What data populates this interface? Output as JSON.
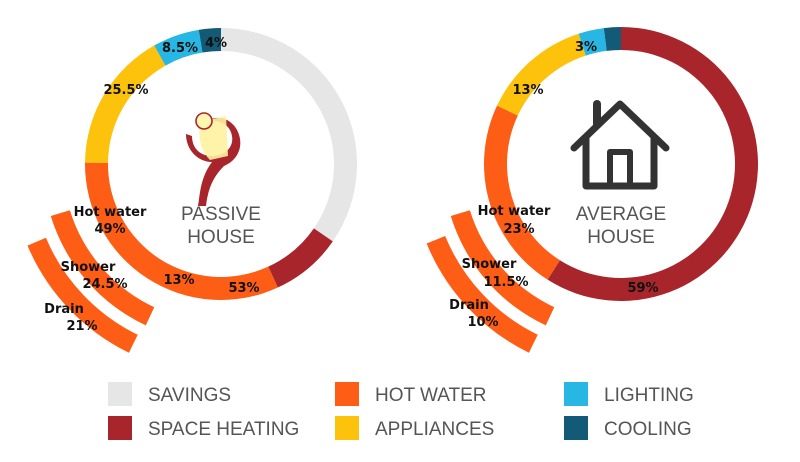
{
  "colors": {
    "savings": "#e6e6e6",
    "space_heating": "#a8262b",
    "hot_water": "#fd5d15",
    "appliances": "#fdc20b",
    "lighting": "#28b6e4",
    "cooling": "#125a75",
    "icon_dark": "#333333"
  },
  "chart_data": [
    {
      "type": "pie",
      "center_lines": [
        "PASSIVE",
        "HOUSE"
      ],
      "slices": [
        {
          "category": "SAVINGS",
          "value": 53,
          "label": "53%"
        },
        {
          "category": "SPACE HEATING",
          "value": 13,
          "label": "13%"
        },
        {
          "category": "HOT WATER",
          "value": 49,
          "label_name": "Hot water",
          "label": "49%"
        },
        {
          "category": "APPLIANCES",
          "value": 25.5,
          "label": "25.5%"
        },
        {
          "category": "LIGHTING",
          "value": 8.5,
          "label": "8.5%"
        },
        {
          "category": "COOLING",
          "value": 4,
          "label": "4%"
        }
      ],
      "hot_water_breakdown": [
        {
          "name": "Shower",
          "value": 24.5,
          "label": "24.5%"
        },
        {
          "name": "Drain",
          "value": 21,
          "label": "21%"
        }
      ]
    },
    {
      "type": "pie",
      "center_lines": [
        "AVERAGE",
        "HOUSE"
      ],
      "slices": [
        {
          "category": "SPACE HEATING",
          "value": 59,
          "label": "59%"
        },
        {
          "category": "HOT WATER",
          "value": 23,
          "label_name": "Hot water",
          "label": "23%"
        },
        {
          "category": "APPLIANCES",
          "value": 13,
          "label": "13%"
        },
        {
          "category": "LIGHTING",
          "value": 3,
          "label": "3%"
        },
        {
          "category": "COOLING",
          "value": 2,
          "label": ""
        }
      ],
      "hot_water_breakdown": [
        {
          "name": "Shower",
          "value": 11.5,
          "label": "11.5%"
        },
        {
          "name": "Drain",
          "value": 10,
          "label": "10%"
        }
      ]
    }
  ],
  "legend": [
    {
      "label": "SAVINGS",
      "color_key": "savings"
    },
    {
      "label": "SPACE HEATING",
      "color_key": "space_heating"
    },
    {
      "label": "HOT WATER",
      "color_key": "hot_water"
    },
    {
      "label": "APPLIANCES",
      "color_key": "appliances"
    },
    {
      "label": "LIGHTING",
      "color_key": "lighting"
    },
    {
      "label": "COOLING",
      "color_key": "cooling"
    }
  ]
}
